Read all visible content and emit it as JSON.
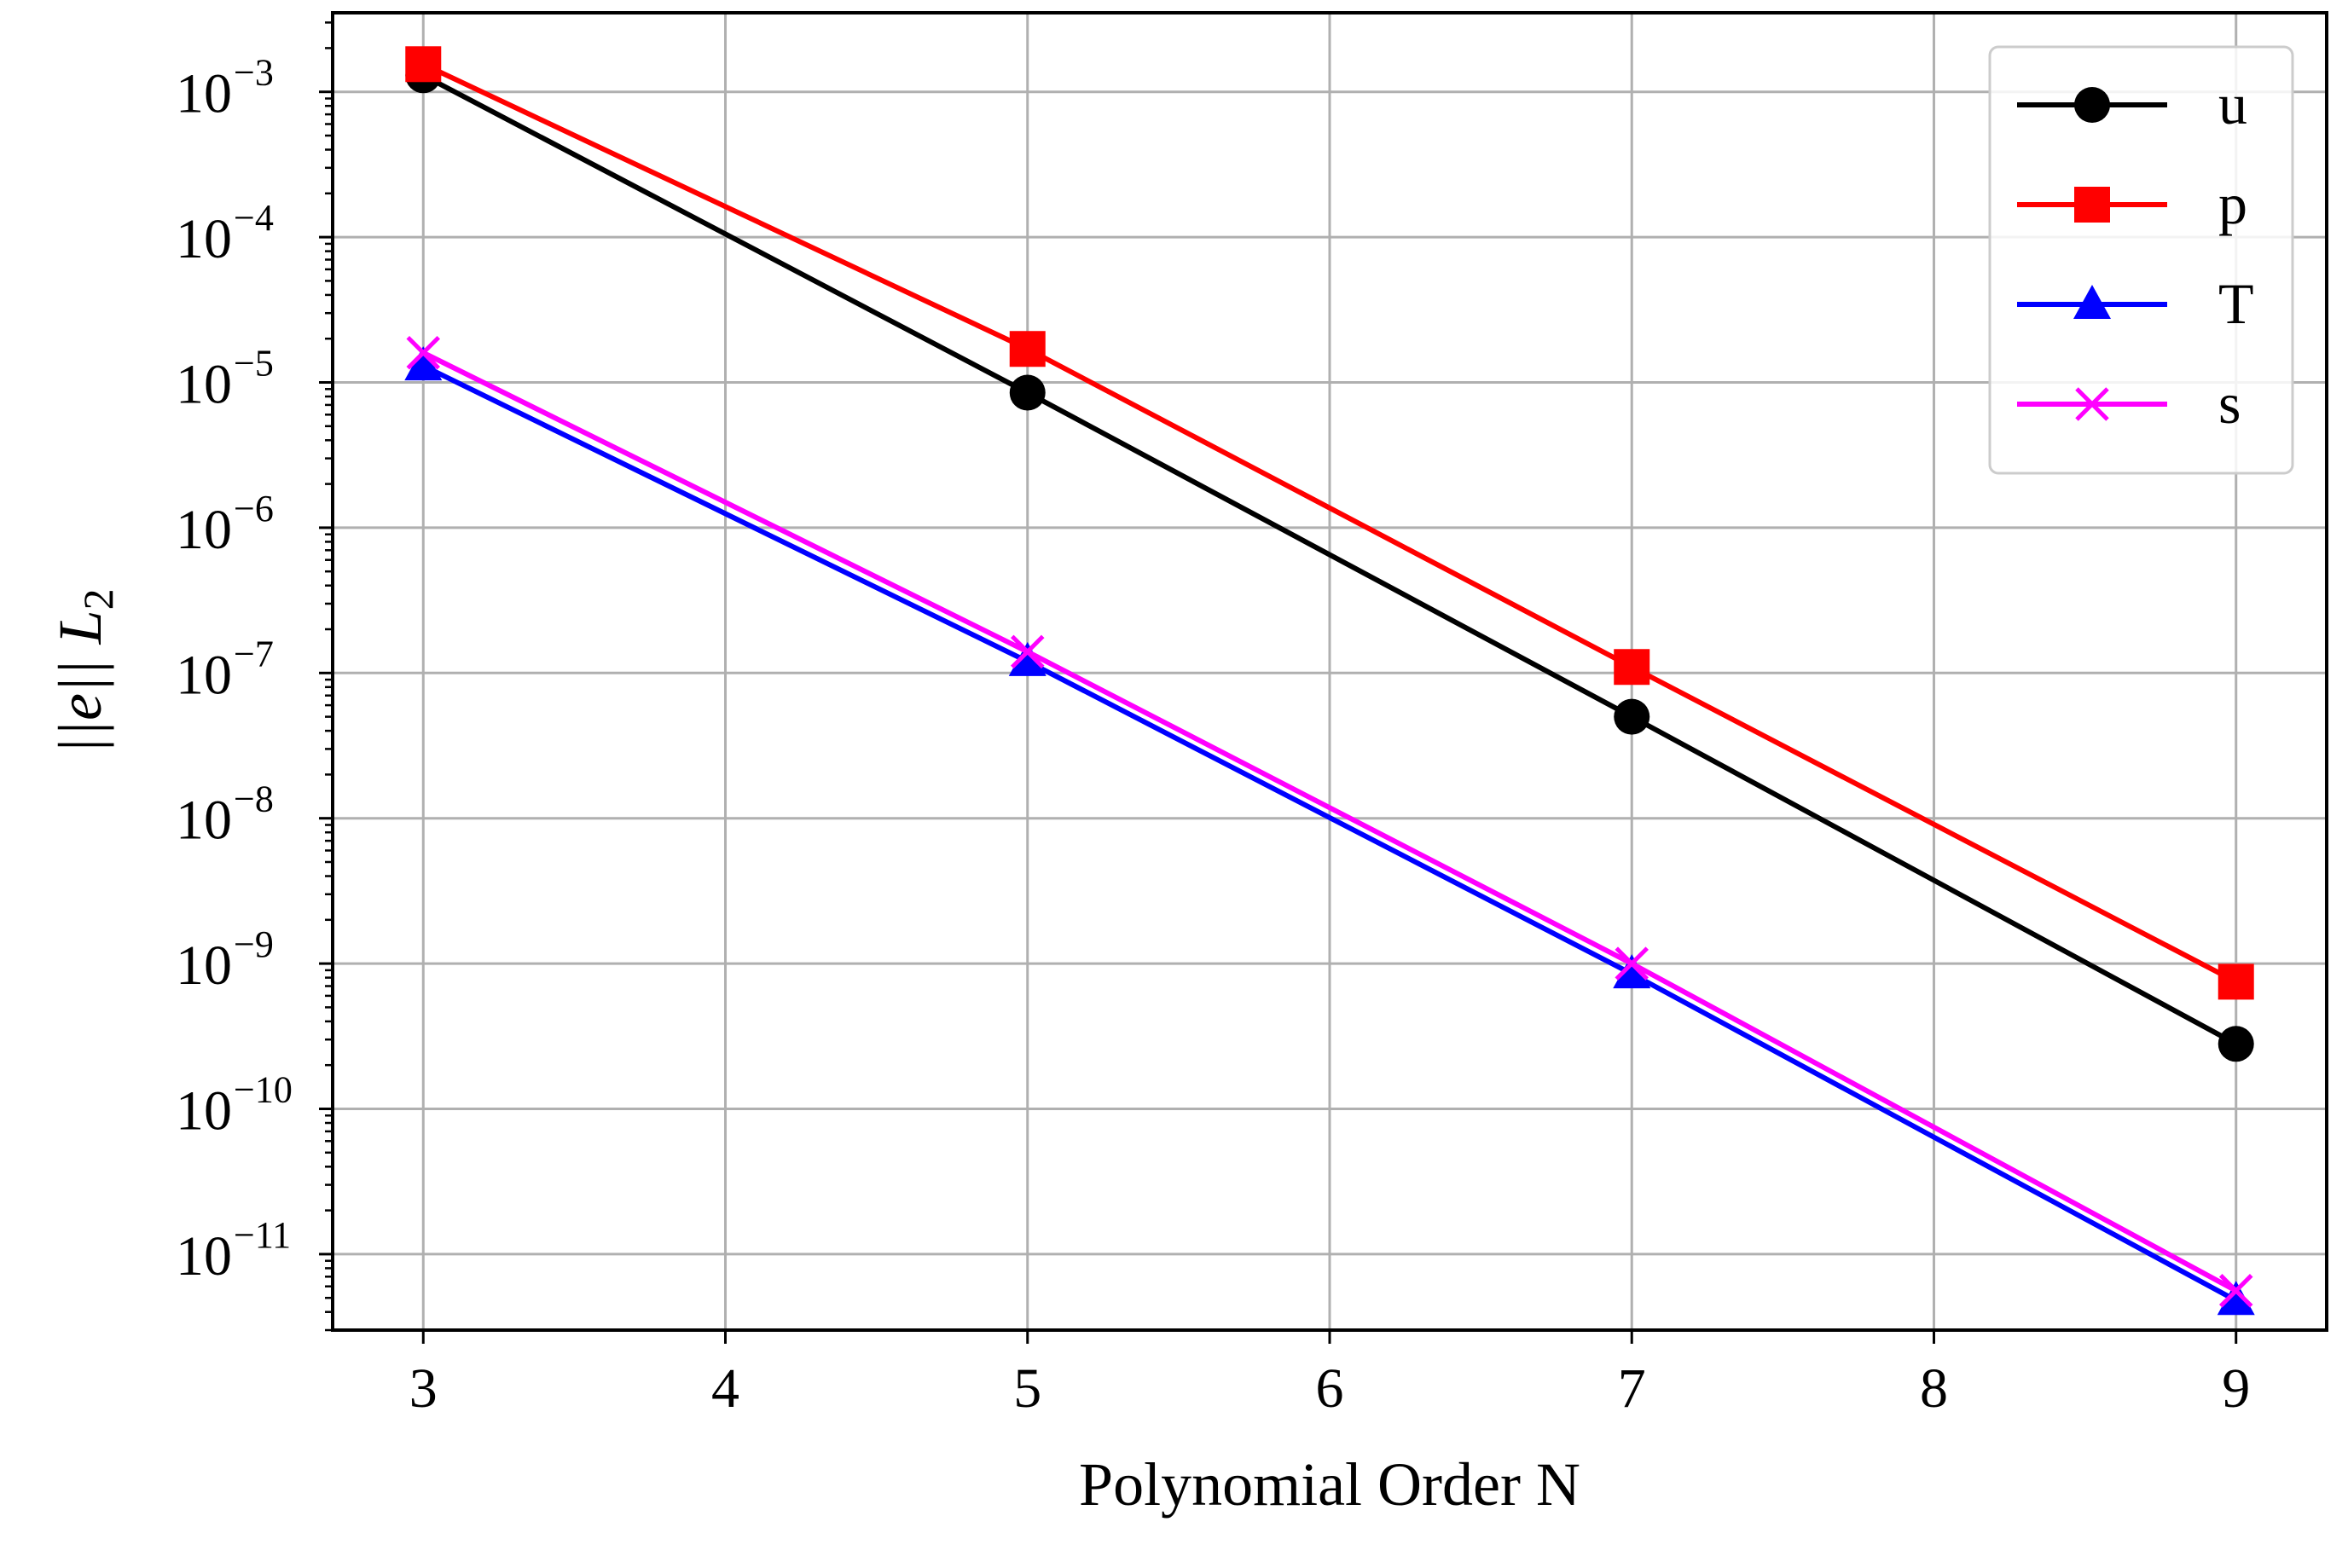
{
  "chart_data": {
    "type": "line",
    "title": "",
    "xlabel": "Polynomial Order N",
    "ylabel": "||e|| L",
    "ylabel_subscript": "2",
    "yscale": "log",
    "xlim": [
      2.7,
      9.3
    ],
    "ylim": [
      3e-12,
      0.0035
    ],
    "x_ticks": [
      3,
      4,
      5,
      6,
      7,
      8,
      9
    ],
    "x_tick_labels": [
      "3",
      "4",
      "5",
      "6",
      "7",
      "8",
      "9"
    ],
    "y_ticks": [
      0.001,
      0.0001,
      1e-05,
      1e-06,
      1e-07,
      1e-08,
      1e-09,
      1e-10,
      1e-11
    ],
    "y_tick_labels": [
      {
        "base": "10",
        "exp": "−3"
      },
      {
        "base": "10",
        "exp": "−4"
      },
      {
        "base": "10",
        "exp": "−5"
      },
      {
        "base": "10",
        "exp": "−6"
      },
      {
        "base": "10",
        "exp": "−7"
      },
      {
        "base": "10",
        "exp": "−8"
      },
      {
        "base": "10",
        "exp": "−9"
      },
      {
        "base": "10",
        "exp": "−10"
      },
      {
        "base": "10",
        "exp": "−11"
      }
    ],
    "grid": true,
    "legend_position": "top-right",
    "x": [
      3,
      5,
      7,
      9
    ],
    "series": [
      {
        "name": "u",
        "color": "#000000",
        "marker": "circle",
        "values": [
          0.0013,
          8.5e-06,
          5e-08,
          2.8e-10
        ]
      },
      {
        "name": "p",
        "color": "#ff0000",
        "marker": "square",
        "values": [
          0.00155,
          1.7e-05,
          1.1e-07,
          7.5e-10
        ]
      },
      {
        "name": "T",
        "color": "#0000ff",
        "marker": "triangle",
        "values": [
          1.3e-05,
          1.2e-07,
          8.5e-10,
          4.8e-12
        ]
      },
      {
        "name": "s",
        "color": "#ff00ff",
        "marker": "x",
        "values": [
          1.6e-05,
          1.4e-07,
          1e-09,
          5.6e-12
        ]
      }
    ]
  }
}
